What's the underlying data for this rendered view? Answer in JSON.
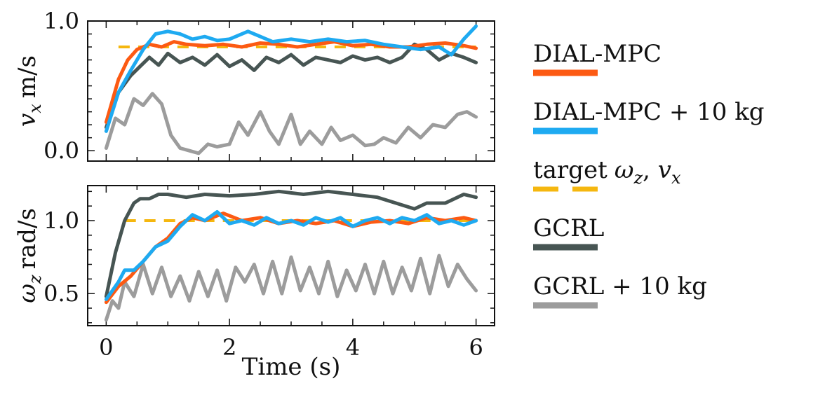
{
  "chart_data": [
    {
      "type": "line",
      "panel": "top",
      "ylabel_var": "v",
      "ylabel_sub": "x",
      "ylabel_unit": "m/s",
      "xlim": [
        -0.3,
        6.3
      ],
      "ylim": [
        -0.08,
        1.0
      ],
      "yticks": [
        0.0,
        1.0
      ],
      "ytick_labels": [
        "0.0",
        "1.0"
      ],
      "series": [
        {
          "key": "target",
          "color": "#f5b70f",
          "dashed": true,
          "x": [
            0.2,
            6.0
          ],
          "y": [
            0.8,
            0.8
          ]
        },
        {
          "key": "gcrl10",
          "color": "#9c9c9c",
          "x": [
            0,
            0.15,
            0.3,
            0.45,
            0.6,
            0.75,
            0.9,
            1.05,
            1.2,
            1.35,
            1.5,
            1.65,
            1.8,
            2.0,
            2.15,
            2.3,
            2.5,
            2.65,
            2.8,
            3.0,
            3.15,
            3.3,
            3.5,
            3.65,
            3.8,
            4.0,
            4.2,
            4.35,
            4.5,
            4.7,
            4.9,
            5.1,
            5.3,
            5.5,
            5.7,
            5.85,
            6.0
          ],
          "y": [
            0.02,
            0.25,
            0.2,
            0.4,
            0.35,
            0.44,
            0.36,
            0.12,
            0.02,
            0.0,
            -0.02,
            0.05,
            0.03,
            0.05,
            0.22,
            0.12,
            0.3,
            0.15,
            0.05,
            0.28,
            0.05,
            0.15,
            0.05,
            0.18,
            0.08,
            0.12,
            0.04,
            0.05,
            0.1,
            0.06,
            0.18,
            0.1,
            0.2,
            0.18,
            0.28,
            0.3,
            0.26
          ]
        },
        {
          "key": "gcrl",
          "color": "#475553",
          "x": [
            0,
            0.2,
            0.4,
            0.55,
            0.7,
            0.85,
            1.0,
            1.2,
            1.4,
            1.6,
            1.8,
            2.0,
            2.2,
            2.4,
            2.6,
            2.8,
            3.0,
            3.2,
            3.4,
            3.6,
            3.8,
            4.0,
            4.2,
            4.4,
            4.6,
            4.8,
            5.0,
            5.2,
            5.4,
            5.6,
            5.8,
            6.0
          ],
          "y": [
            0.18,
            0.45,
            0.58,
            0.65,
            0.72,
            0.66,
            0.75,
            0.68,
            0.72,
            0.66,
            0.74,
            0.65,
            0.7,
            0.62,
            0.72,
            0.68,
            0.74,
            0.66,
            0.72,
            0.7,
            0.68,
            0.73,
            0.7,
            0.72,
            0.68,
            0.72,
            0.82,
            0.78,
            0.7,
            0.75,
            0.72,
            0.68
          ]
        },
        {
          "key": "dialmpc",
          "color": "#fc5a13",
          "x": [
            0,
            0.2,
            0.35,
            0.5,
            0.7,
            0.9,
            1.1,
            1.3,
            1.6,
            1.9,
            2.2,
            2.5,
            2.8,
            3.1,
            3.4,
            3.7,
            4.0,
            4.3,
            4.6,
            4.9,
            5.2,
            5.5,
            5.8,
            6.0
          ],
          "y": [
            0.22,
            0.55,
            0.7,
            0.78,
            0.82,
            0.8,
            0.84,
            0.82,
            0.81,
            0.82,
            0.8,
            0.83,
            0.82,
            0.8,
            0.82,
            0.84,
            0.81,
            0.82,
            0.8,
            0.8,
            0.82,
            0.83,
            0.81,
            0.79
          ]
        },
        {
          "key": "dialmpc10",
          "color": "#1eaaf1",
          "x": [
            0,
            0.2,
            0.4,
            0.6,
            0.8,
            1.0,
            1.2,
            1.4,
            1.6,
            1.8,
            2.0,
            2.3,
            2.5,
            2.7,
            3.0,
            3.3,
            3.6,
            3.9,
            4.2,
            4.5,
            4.8,
            5.1,
            5.4,
            5.6,
            5.8,
            6.0
          ],
          "y": [
            0.15,
            0.45,
            0.62,
            0.78,
            0.9,
            0.92,
            0.9,
            0.86,
            0.88,
            0.85,
            0.86,
            0.92,
            0.88,
            0.84,
            0.86,
            0.84,
            0.86,
            0.84,
            0.85,
            0.82,
            0.8,
            0.78,
            0.8,
            0.74,
            0.86,
            0.96
          ]
        }
      ]
    },
    {
      "type": "line",
      "panel": "bottom",
      "ylabel_var": "ω",
      "ylabel_sub": "z",
      "ylabel_unit": "rad/s",
      "xlabel": "Time (s)",
      "xlim": [
        -0.3,
        6.3
      ],
      "ylim": [
        0.28,
        1.24
      ],
      "yticks": [
        0.5,
        1.0
      ],
      "ytick_labels": [
        "0.5",
        "1.0"
      ],
      "xticks": [
        0,
        2,
        4,
        6
      ],
      "xtick_labels": [
        "0",
        "2",
        "4",
        "6"
      ],
      "series": [
        {
          "key": "target",
          "color": "#f5b70f",
          "dashed": true,
          "x": [
            0.3,
            6.0
          ],
          "y": [
            1.0,
            1.0
          ]
        },
        {
          "key": "gcrl10",
          "color": "#9c9c9c",
          "x": [
            0,
            0.1,
            0.2,
            0.3,
            0.45,
            0.6,
            0.75,
            0.9,
            1.05,
            1.2,
            1.35,
            1.5,
            1.65,
            1.8,
            1.95,
            2.1,
            2.25,
            2.4,
            2.55,
            2.7,
            2.85,
            3.0,
            3.15,
            3.3,
            3.45,
            3.6,
            3.75,
            3.9,
            4.05,
            4.2,
            4.35,
            4.5,
            4.65,
            4.8,
            4.95,
            5.1,
            5.25,
            5.4,
            5.55,
            5.7,
            5.85,
            6.0
          ],
          "y": [
            0.32,
            0.45,
            0.4,
            0.58,
            0.48,
            0.7,
            0.5,
            0.68,
            0.48,
            0.62,
            0.45,
            0.65,
            0.48,
            0.66,
            0.45,
            0.68,
            0.58,
            0.7,
            0.5,
            0.72,
            0.5,
            0.75,
            0.52,
            0.68,
            0.5,
            0.72,
            0.48,
            0.66,
            0.52,
            0.7,
            0.5,
            0.72,
            0.5,
            0.68,
            0.52,
            0.74,
            0.5,
            0.76,
            0.55,
            0.7,
            0.6,
            0.52
          ]
        },
        {
          "key": "gcrl",
          "color": "#475553",
          "x": [
            0,
            0.15,
            0.3,
            0.45,
            0.55,
            0.7,
            0.85,
            1.0,
            1.3,
            1.6,
            2.0,
            2.4,
            2.8,
            3.2,
            3.6,
            4.0,
            4.4,
            4.7,
            5.0,
            5.2,
            5.5,
            5.8,
            6.0
          ],
          "y": [
            0.48,
            0.78,
            1.0,
            1.12,
            1.15,
            1.15,
            1.18,
            1.18,
            1.16,
            1.18,
            1.17,
            1.18,
            1.2,
            1.18,
            1.2,
            1.18,
            1.16,
            1.12,
            1.08,
            1.12,
            1.12,
            1.18,
            1.16
          ]
        },
        {
          "key": "dialmpc",
          "color": "#fc5a13",
          "x": [
            0,
            0.2,
            0.4,
            0.6,
            0.8,
            1.0,
            1.2,
            1.4,
            1.6,
            1.9,
            2.2,
            2.5,
            2.8,
            3.1,
            3.4,
            3.7,
            4.0,
            4.3,
            4.6,
            4.9,
            5.2,
            5.5,
            5.8,
            6.0
          ],
          "y": [
            0.44,
            0.55,
            0.62,
            0.72,
            0.82,
            0.88,
            0.98,
            1.02,
            1.0,
            1.05,
            1.0,
            1.02,
            0.98,
            1.0,
            0.98,
            1.0,
            0.96,
            0.99,
            1.0,
            0.98,
            1.02,
            1.0,
            1.02,
            1.0
          ]
        },
        {
          "key": "dialmpc10",
          "color": "#1eaaf1",
          "x": [
            0,
            0.2,
            0.3,
            0.45,
            0.6,
            0.8,
            1.0,
            1.2,
            1.4,
            1.6,
            1.8,
            2.0,
            2.2,
            2.4,
            2.6,
            2.8,
            3.0,
            3.2,
            3.4,
            3.6,
            3.8,
            4.0,
            4.2,
            4.4,
            4.6,
            4.8,
            5.0,
            5.2,
            5.4,
            5.6,
            5.8,
            6.0
          ],
          "y": [
            0.46,
            0.58,
            0.66,
            0.66,
            0.72,
            0.82,
            0.86,
            0.96,
            1.04,
            1.0,
            1.06,
            0.98,
            1.0,
            0.97,
            1.02,
            0.98,
            1.0,
            0.97,
            1.02,
            0.99,
            1.02,
            0.96,
            1.0,
            1.02,
            0.98,
            1.02,
            1.0,
            1.04,
            0.98,
            1.0,
            0.97,
            1.0
          ]
        }
      ]
    }
  ],
  "legend": {
    "items": [
      {
        "key": "dialmpc",
        "label": "DIAL-MPC",
        "color": "#fc5a13",
        "dashed": false
      },
      {
        "key": "dialmpc10",
        "label": "DIAL-MPC + 10 kg",
        "color": "#1eaaf1",
        "dashed": false
      },
      {
        "key": "target",
        "label": "target",
        "label_math": "ωz, vx",
        "color": "#f5b70f",
        "dashed": true
      },
      {
        "key": "gcrl",
        "label": "GCRL",
        "color": "#475553",
        "dashed": false
      },
      {
        "key": "gcrl10",
        "label": "GCRL + 10 kg",
        "color": "#9c9c9c",
        "dashed": false
      }
    ]
  }
}
